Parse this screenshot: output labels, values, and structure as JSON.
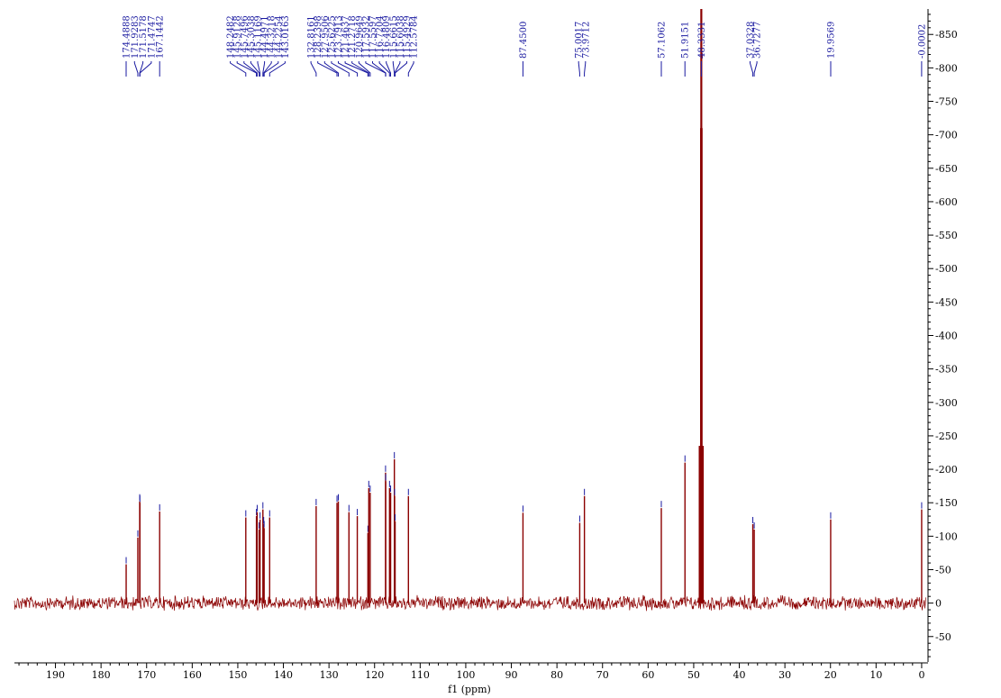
{
  "chart_data": {
    "type": "line",
    "title": "",
    "xlabel": "f1 (ppm)",
    "ylabel": "",
    "xlim": [
      199,
      -1
    ],
    "ylim": [
      -88,
      888
    ],
    "x_ticks": [
      190,
      180,
      170,
      160,
      150,
      140,
      130,
      120,
      110,
      100,
      90,
      80,
      70,
      60,
      50,
      40,
      30,
      20,
      10,
      0
    ],
    "y_ticks": [
      850,
      800,
      750,
      700,
      650,
      600,
      550,
      500,
      450,
      400,
      350,
      300,
      250,
      200,
      150,
      100,
      50,
      0,
      -50
    ],
    "grid": false,
    "colors": {
      "spectrum": "#8b0000",
      "labels": "#1a1aa0",
      "axis": "#000000"
    },
    "peaks": [
      {
        "label": "174.4888",
        "x": 174.4888,
        "y": 58
      },
      {
        "label": "171.9283",
        "x": 171.9283,
        "y": 98
      },
      {
        "label": "171.5178",
        "x": 171.5178,
        "y": 152
      },
      {
        "label": "171.4747",
        "x": 171.4747,
        "y": 150
      },
      {
        "label": "167.1442",
        "x": 167.1442,
        "y": 137
      },
      {
        "label": "148.2482",
        "x": 148.2482,
        "y": 128
      },
      {
        "label": "145.9128",
        "x": 145.9128,
        "y": 130
      },
      {
        "label": "145.7496",
        "x": 145.7496,
        "y": 136
      },
      {
        "label": "145.3038",
        "x": 145.3038,
        "y": 110
      },
      {
        "label": "145.1169",
        "x": 145.1169,
        "y": 125
      },
      {
        "label": "144.4971",
        "x": 144.4971,
        "y": 140
      },
      {
        "label": "144.3218",
        "x": 144.3218,
        "y": 118
      },
      {
        "label": "144.2254",
        "x": 144.2254,
        "y": 112
      },
      {
        "label": "143.0163",
        "x": 143.0163,
        "y": 128
      },
      {
        "label": "132.8161",
        "x": 132.8161,
        "y": 145
      },
      {
        "label": "128.2398",
        "x": 128.2398,
        "y": 150
      },
      {
        "label": "127.9506",
        "x": 127.9506,
        "y": 152
      },
      {
        "label": "125.6225",
        "x": 125.6225,
        "y": 136
      },
      {
        "label": "123.7913",
        "x": 123.7913,
        "y": 130
      },
      {
        "label": "121.4637",
        "x": 121.4637,
        "y": 105
      },
      {
        "label": "121.2718",
        "x": 121.2718,
        "y": 172
      },
      {
        "label": "120.9649",
        "x": 120.9649,
        "y": 165
      },
      {
        "label": "117.5932",
        "x": 117.5932,
        "y": 195
      },
      {
        "label": "117.5597",
        "x": 117.5597,
        "y": 182
      },
      {
        "label": "116.7204",
        "x": 116.7204,
        "y": 172
      },
      {
        "label": "116.4809",
        "x": 116.4809,
        "y": 165
      },
      {
        "label": "115.6615",
        "x": 115.6615,
        "y": 215
      },
      {
        "label": "115.6038",
        "x": 115.6038,
        "y": 160
      },
      {
        "label": "115.4929",
        "x": 115.4929,
        "y": 122
      },
      {
        "label": "112.5784",
        "x": 112.5784,
        "y": 160
      },
      {
        "label": "87.4500",
        "x": 87.45,
        "y": 135
      },
      {
        "label": "75.0017",
        "x": 75.0017,
        "y": 120
      },
      {
        "label": "73.9712",
        "x": 73.9712,
        "y": 160
      },
      {
        "label": "57.1062",
        "x": 57.1062,
        "y": 142
      },
      {
        "label": "51.9151",
        "x": 51.9151,
        "y": 210
      },
      {
        "label": "48.3331",
        "x": 48.3331,
        "y": 888
      },
      {
        "label": "37.0328",
        "x": 37.0328,
        "y": 118
      },
      {
        "label": "36.7277",
        "x": 36.7277,
        "y": 110
      },
      {
        "label": "19.9569",
        "x": 19.9569,
        "y": 125
      },
      {
        "label": "-0.0002",
        "x": -0.0002,
        "y": 140
      }
    ]
  }
}
